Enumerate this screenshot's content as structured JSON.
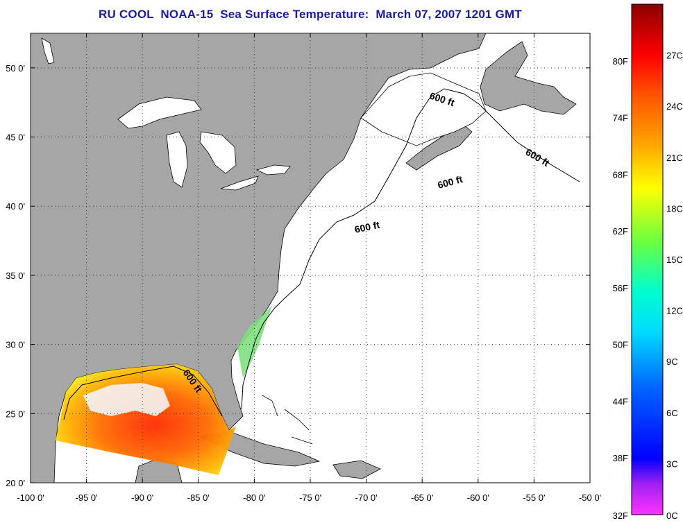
{
  "title": "RU COOL  NOAA-15  Sea Surface Temperature:  March 07, 2007 1201 GMT",
  "map": {
    "lon_range": [
      -100,
      -50
    ],
    "lat_range": [
      20,
      52.5
    ],
    "lon_ticks": [
      -100,
      -95,
      -90,
      -85,
      -80,
      -75,
      -70,
      -65,
      -60,
      -55,
      -50
    ],
    "lon_tick_labels": [
      "-100 0'",
      "-95 0'",
      "-90 0'",
      "-85 0'",
      "-80 0'",
      "-75 0'",
      "-70 0'",
      "-65 0'",
      "-60 0'",
      "-55 0'",
      "-50 0'"
    ],
    "lat_ticks": [
      20,
      25,
      30,
      35,
      40,
      45,
      50
    ],
    "lat_tick_labels": [
      "20 0'",
      "25 0'",
      "30 0'",
      "35 0'",
      "40 0'",
      "45 0'",
      "50 0'"
    ],
    "grid": true,
    "contour_labels": [
      "600 ft",
      "600 ft",
      "600 ft",
      "600 ft",
      "600 ft"
    ],
    "colors": {
      "land": "#a6a6a6",
      "ocean": "#ffffff",
      "coast": "#000000",
      "grid": "#222222"
    }
  },
  "colorbar": {
    "f_labels": [
      "80F",
      "74F",
      "68F",
      "62F",
      "56F",
      "50F",
      "44F",
      "38F",
      "32F"
    ],
    "c_labels": [
      "27C",
      "24C",
      "21C",
      "18C",
      "15C",
      "12C",
      "9C",
      "6C",
      "3C",
      "0C"
    ],
    "gradient": [
      "#ff00ff",
      "#a020f0",
      "#0000ff",
      "#0060ff",
      "#00d8ff",
      "#00ffc0",
      "#60ff40",
      "#ffff00",
      "#ffb000",
      "#ff5000",
      "#ff0000",
      "#b00000",
      "#8b0000"
    ]
  }
}
